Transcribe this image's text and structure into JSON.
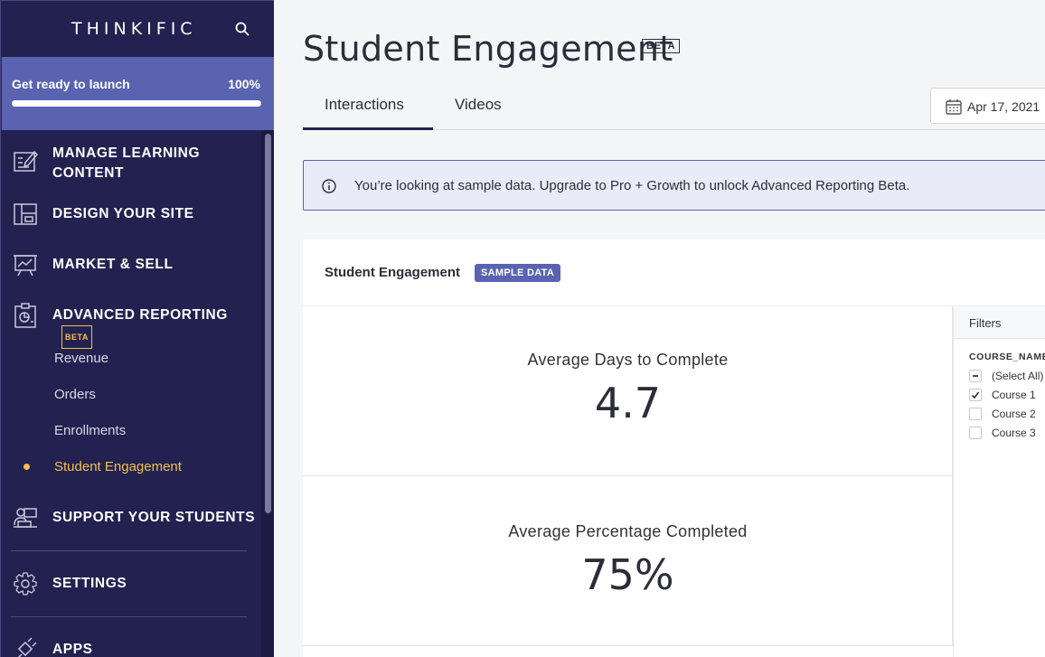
{
  "sidebar": {
    "logo": "THINKIFIC",
    "launch": {
      "title": "Get ready to launch",
      "percent": "100%",
      "progress": 1.0
    },
    "items": [
      {
        "label": "MANAGE LEARNING",
        "label2": "CONTENT",
        "icon": "edit-content-icon"
      },
      {
        "label": "DESIGN YOUR SITE",
        "icon": "layout-icon"
      },
      {
        "label": "MARKET & SELL",
        "icon": "presentation-chart-icon"
      },
      {
        "label": "ADVANCED REPORTING",
        "badge": "BETA",
        "icon": "report-clipboard-icon"
      },
      {
        "label": "SUPPORT YOUR STUDENTS",
        "icon": "students-icon"
      },
      {
        "label": "SETTINGS",
        "icon": "gear-icon"
      },
      {
        "label": "APPS",
        "icon": "plug-icon"
      }
    ],
    "reporting_sub": [
      "Revenue",
      "Orders",
      "Enrollments",
      "Student Engagement"
    ]
  },
  "header": {
    "title": "Student Engagement",
    "badge": "BETA",
    "tabs": [
      "Interactions",
      "Videos"
    ],
    "date": "Apr 17, 2021"
  },
  "notice": "You’re looking at sample data. Upgrade to Pro + Growth to unlock Advanced Reporting Beta.",
  "card": {
    "title": "Student Engagement",
    "badge": "SAMPLE DATA",
    "metrics": [
      {
        "label": "Average Days to Complete",
        "value": "4.7"
      },
      {
        "label": "Average Percentage Completed",
        "value": "75%"
      }
    ],
    "filters": {
      "title": "Filters",
      "column": "COURSE_NAME",
      "options": [
        {
          "label": "(Select All)",
          "state": "partial"
        },
        {
          "label": "Course 1",
          "state": "checked"
        },
        {
          "label": "Course 2",
          "state": "unchecked"
        },
        {
          "label": "Course 3",
          "state": "unchecked"
        }
      ]
    }
  },
  "colors": {
    "sidebar": "#23214f",
    "accent": "#5a63b0",
    "highlight": "#f2c14e"
  }
}
